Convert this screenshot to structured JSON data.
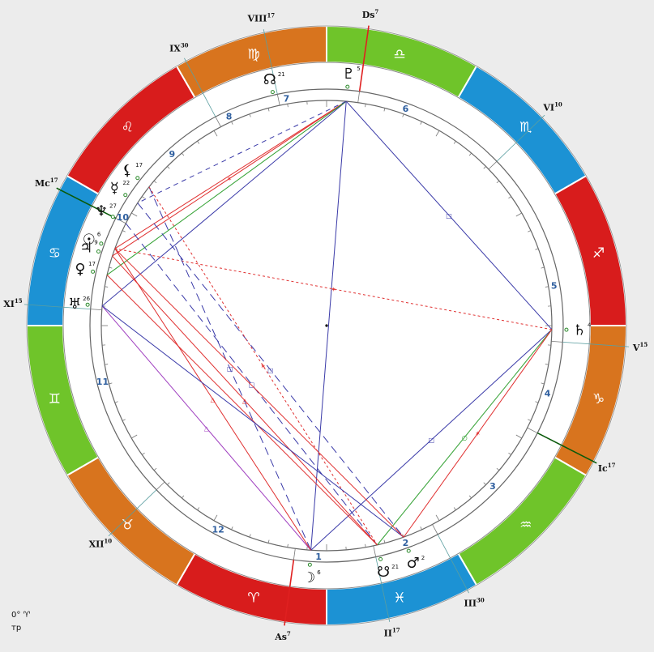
{
  "signs": [
    {
      "name": "aries",
      "glyph": "♈",
      "color": "#d81c1c"
    },
    {
      "name": "taurus",
      "glyph": "♉",
      "color": "#d8741e"
    },
    {
      "name": "gemini",
      "glyph": "♊",
      "color": "#6fc42a"
    },
    {
      "name": "cancer",
      "glyph": "♋",
      "color": "#1c92d4"
    },
    {
      "name": "leo",
      "glyph": "♌",
      "color": "#d81c1c"
    },
    {
      "name": "virgo",
      "glyph": "♍",
      "color": "#d8741e"
    },
    {
      "name": "libra",
      "glyph": "♎",
      "color": "#6fc42a"
    },
    {
      "name": "scorpio",
      "glyph": "♏",
      "color": "#1c92d4"
    },
    {
      "name": "sagittarius",
      "glyph": "♐",
      "color": "#d81c1c"
    },
    {
      "name": "capricorn",
      "glyph": "♑",
      "color": "#d8741e"
    },
    {
      "name": "aquarius",
      "glyph": "♒",
      "color": "#6fc42a"
    },
    {
      "name": "pisces",
      "glyph": "♓",
      "color": "#1c92d4"
    }
  ],
  "sign_ring_offset_deg": 270,
  "houses": [
    {
      "number": "1",
      "cusp_angle": 262,
      "label_angle": 268
    },
    {
      "number": "2",
      "cusp_angle": 282,
      "label_angle": 290
    },
    {
      "number": "3",
      "cusp_angle": 298,
      "label_angle": 316
    },
    {
      "number": "4",
      "cusp_angle": 333,
      "label_angle": 343
    },
    {
      "number": "5",
      "cusp_angle": 356,
      "label_angle": 10
    },
    {
      "number": "6",
      "cusp_angle": 44,
      "label_angle": 70
    },
    {
      "number": "7",
      "cusp_angle": 82,
      "label_angle": 100
    },
    {
      "number": "8",
      "cusp_angle": 102,
      "label_angle": 115
    },
    {
      "number": "9",
      "cusp_angle": 118,
      "label_angle": 132
    },
    {
      "number": "10",
      "cusp_angle": 153,
      "label_angle": 152
    },
    {
      "number": "11",
      "cusp_angle": 176,
      "label_angle": 194
    },
    {
      "number": "12",
      "cusp_angle": 224,
      "label_angle": 242
    }
  ],
  "cusp_labels": [
    {
      "id": "as",
      "text": "As",
      "deg": "7",
      "angle": 262
    },
    {
      "id": "ii",
      "text": "II",
      "deg": "17",
      "angle": 282
    },
    {
      "id": "iii",
      "text": "III",
      "deg": "30",
      "angle": 298
    },
    {
      "id": "ic",
      "text": "Ic",
      "deg": "17",
      "angle": 333
    },
    {
      "id": "v",
      "text": "V",
      "deg": "15",
      "angle": 356
    },
    {
      "id": "vi",
      "text": "VI",
      "deg": "10",
      "angle": 44
    },
    {
      "id": "ds",
      "text": "Ds",
      "deg": "7",
      "angle": 82
    },
    {
      "id": "viii",
      "text": "VIII",
      "deg": "17",
      "angle": 102
    },
    {
      "id": "ix",
      "text": "IX",
      "deg": "30",
      "angle": 118
    },
    {
      "id": "mc",
      "text": "Mc",
      "deg": "17",
      "angle": 153
    },
    {
      "id": "xi",
      "text": "XI",
      "deg": "15",
      "angle": 176
    },
    {
      "id": "xii",
      "text": "XII",
      "deg": "10",
      "angle": 224
    }
  ],
  "planets": [
    {
      "id": "moon",
      "glyph": "☽",
      "deg": "6",
      "angle": 266
    },
    {
      "id": "mars",
      "glyph": "♂",
      "deg": "2",
      "angle": 290
    },
    {
      "id": "south-node",
      "glyph": "☋",
      "deg": "21",
      "angle": 283
    },
    {
      "id": "saturn",
      "glyph": "♄",
      "deg": "4",
      "angle": 359
    },
    {
      "id": "pluto",
      "glyph": "♇",
      "deg": "5",
      "angle": 85
    },
    {
      "id": "north-node",
      "glyph": "☊",
      "deg": "21",
      "angle": 103
    },
    {
      "id": "lilith",
      "glyph": "⚸",
      "deg": "17",
      "angle": 142
    },
    {
      "id": "mercury",
      "glyph": "☿",
      "deg": "22",
      "angle": 147
    },
    {
      "id": "neptune",
      "glyph": "♆",
      "deg": "27",
      "angle": 153
    },
    {
      "id": "sun",
      "glyph": "☉",
      "deg": "6",
      "angle": 160
    },
    {
      "id": "jupiter",
      "glyph": "♃",
      "deg": "9",
      "angle": 162
    },
    {
      "id": "venus",
      "glyph": "♀",
      "deg": "17",
      "angle": 167
    },
    {
      "id": "uranus",
      "glyph": "♅",
      "deg": "26",
      "angle": 175
    }
  ],
  "aspects": [
    {
      "from": 85,
      "to": 359,
      "color": "#3a3aa8",
      "dash": "",
      "mark": "□"
    },
    {
      "from": 359,
      "to": 266,
      "color": "#3a3aa8",
      "dash": "",
      "mark": "□"
    },
    {
      "from": 85,
      "to": 266,
      "color": "#3a3aa8",
      "dash": "",
      "mark": ""
    },
    {
      "from": 85,
      "to": 175,
      "color": "#3a3aa8",
      "dash": "",
      "mark": ""
    },
    {
      "from": 175,
      "to": 266,
      "color": "#a040c0",
      "dash": "",
      "mark": "△"
    },
    {
      "from": 359,
      "to": 160,
      "color": "#e03030",
      "dash": "3 3",
      "mark": "✶"
    },
    {
      "from": 359,
      "to": 283,
      "color": "#30a030",
      "dash": "",
      "mark": "○"
    },
    {
      "from": 359,
      "to": 290,
      "color": "#e03030",
      "dash": "",
      "mark": "✶"
    },
    {
      "from": 85,
      "to": 162,
      "color": "#e03030",
      "dash": "",
      "mark": "✶"
    },
    {
      "from": 85,
      "to": 160,
      "color": "#e03030",
      "dash": "",
      "mark": ""
    },
    {
      "from": 85,
      "to": 167,
      "color": "#30a030",
      "dash": "",
      "mark": ""
    },
    {
      "from": 85,
      "to": 147,
      "color": "#3a3aa8",
      "dash": "6 5",
      "mark": ""
    },
    {
      "from": 142,
      "to": 266,
      "color": "#3a3aa8",
      "dash": "10 6",
      "mark": "□"
    },
    {
      "from": 147,
      "to": 290,
      "color": "#3a3aa8",
      "dash": "10 6",
      "mark": "□"
    },
    {
      "from": 153,
      "to": 283,
      "color": "#3a3aa8",
      "dash": "10 6",
      "mark": "□"
    },
    {
      "from": 160,
      "to": 266,
      "color": "#e03030",
      "dash": "",
      "mark": "△"
    },
    {
      "from": 162,
      "to": 283,
      "color": "#e03030",
      "dash": "",
      "mark": "△"
    },
    {
      "from": 167,
      "to": 283,
      "color": "#e03030",
      "dash": "",
      "mark": ""
    },
    {
      "from": 142,
      "to": 283,
      "color": "#e03030",
      "dash": "3 3",
      "mark": "✶"
    },
    {
      "from": 175,
      "to": 290,
      "color": "#3a3aa8",
      "dash": "",
      "mark": ""
    },
    {
      "from": 160,
      "to": 290,
      "color": "#e03030",
      "dash": "",
      "mark": ""
    }
  ],
  "corner": {
    "line1": "0° ♈",
    "line2": "тр"
  }
}
